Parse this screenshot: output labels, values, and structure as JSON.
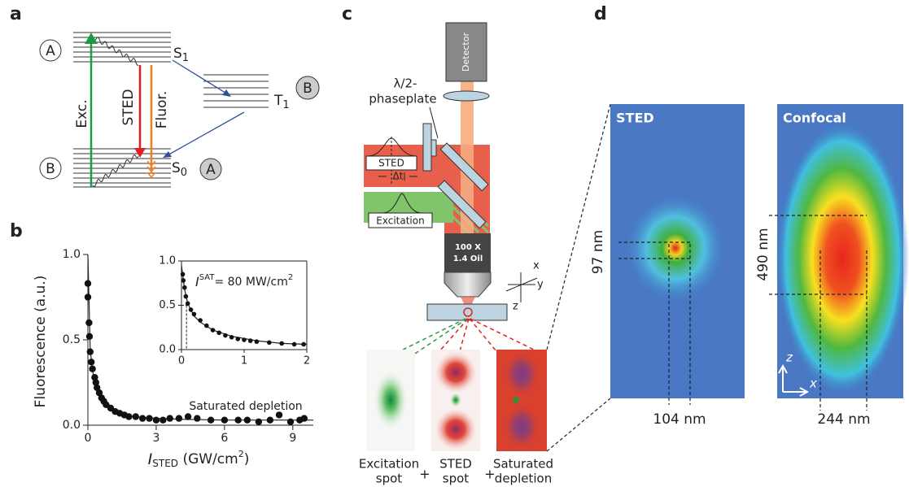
{
  "panel_labels": [
    "a",
    "b",
    "c",
    "d"
  ],
  "panel_a": {
    "levels": [
      {
        "label": "S",
        "sub": "1"
      },
      {
        "label": "T",
        "sub": "1"
      },
      {
        "label": "S",
        "sub": "0"
      }
    ],
    "circles": [
      "A",
      "B",
      "B",
      "A"
    ],
    "transitions": [
      "Exc.",
      "STED",
      "Fluor."
    ]
  },
  "chart_data": [
    {
      "type": "scatter",
      "x": [
        0,
        0,
        0.05,
        0.07,
        0.1,
        0.15,
        0.2,
        0.3,
        0.35,
        0.4,
        0.5,
        0.6,
        0.7,
        0.8,
        1.0,
        1.2,
        1.4,
        1.6,
        1.8,
        2.1,
        2.4,
        2.7,
        3.0,
        3.3,
        3.6,
        4.0,
        4.4,
        4.8,
        5.4,
        6.0,
        6.6,
        7.0,
        7.5,
        8.0,
        8.4,
        8.9,
        9.3,
        9.5
      ],
      "values": [
        0.83,
        0.75,
        0.6,
        0.52,
        0.43,
        0.37,
        0.33,
        0.28,
        0.25,
        0.22,
        0.19,
        0.16,
        0.14,
        0.12,
        0.1,
        0.08,
        0.07,
        0.06,
        0.05,
        0.05,
        0.04,
        0.04,
        0.03,
        0.03,
        0.04,
        0.04,
        0.05,
        0.04,
        0.03,
        0.03,
        0.03,
        0.03,
        0.02,
        0.03,
        0.06,
        0.02,
        0.03,
        0.04
      ],
      "fit": {
        "x": [
          0,
          0.1,
          0.2,
          0.4,
          0.7,
          1,
          1.5,
          2,
          3,
          4,
          6,
          9.9
        ],
        "values": [
          1.0,
          0.45,
          0.32,
          0.2,
          0.13,
          0.09,
          0.06,
          0.05,
          0.04,
          0.035,
          0.03,
          0.03
        ]
      },
      "xlim": [
        0,
        9.9
      ],
      "ylim": [
        0,
        1
      ],
      "xticks": [
        0,
        3,
        6,
        9
      ],
      "yticks": [
        {
          "value": 0,
          "label": "0.0"
        },
        {
          "value": 0.5,
          "label": "0.5"
        },
        {
          "value": 1,
          "label": "1.0"
        }
      ],
      "ylabel": "Fluorescence (a.u.)",
      "xlabel": {
        "symbol": "I",
        "sub": "STED",
        "unit": " (GW/cm",
        "sup": "2",
        "close": ")"
      },
      "annotation": "Saturated depletion"
    },
    {
      "type": "scatter",
      "x": [
        0.02,
        0.03,
        0.05,
        0.07,
        0.1,
        0.15,
        0.2,
        0.3,
        0.4,
        0.5,
        0.6,
        0.7,
        0.8,
        0.9,
        1.0,
        1.1,
        1.2,
        1.4,
        1.6,
        1.8,
        1.95
      ],
      "values": [
        0.85,
        0.78,
        0.7,
        0.6,
        0.52,
        0.45,
        0.4,
        0.33,
        0.27,
        0.22,
        0.19,
        0.16,
        0.14,
        0.12,
        0.11,
        0.1,
        0.09,
        0.08,
        0.07,
        0.06,
        0.06
      ],
      "fit": {
        "x": [
          0,
          0.05,
          0.1,
          0.2,
          0.3,
          0.5,
          0.8,
          1.2,
          1.6,
          2
        ],
        "values": [
          0.95,
          0.68,
          0.52,
          0.38,
          0.31,
          0.22,
          0.15,
          0.1,
          0.07,
          0.06
        ]
      },
      "marker": {
        "x": 0.08,
        "y": 0.5
      },
      "xlim": [
        0,
        2
      ],
      "ylim": [
        0,
        1
      ],
      "xticks": [
        0,
        1,
        2
      ],
      "yticks": [
        {
          "value": 0,
          "label": "0.0"
        },
        {
          "value": 0.5,
          "label": "0.5"
        },
        {
          "value": 1,
          "label": "1.0"
        }
      ],
      "annotation": {
        "symbol": "I",
        "sup": "SAT",
        "text": "= 80 MW/cm",
        "sup2": "2"
      }
    }
  ],
  "panel_c": {
    "detector": "Detector",
    "phaseplate": [
      "λ/2-",
      "phaseplate"
    ],
    "sted_pulse": "STED",
    "delay": "Δt",
    "excitation_pulse": "Excitation",
    "objective": [
      "100 X",
      "1.4 Oil"
    ],
    "axes": [
      "x",
      "y",
      "z"
    ],
    "spots": [
      [
        "Excitation",
        "spot"
      ],
      [
        "STED",
        "spot"
      ],
      [
        "Saturated",
        "depletion"
      ]
    ],
    "plus": [
      "+",
      "+"
    ]
  },
  "panel_d": {
    "images": [
      "STED",
      "Confocal"
    ],
    "sted_sizes": [
      "97 nm",
      "104 nm"
    ],
    "confocal_sizes": [
      "490 nm",
      "244 nm"
    ],
    "axes": [
      "z",
      "x"
    ]
  }
}
